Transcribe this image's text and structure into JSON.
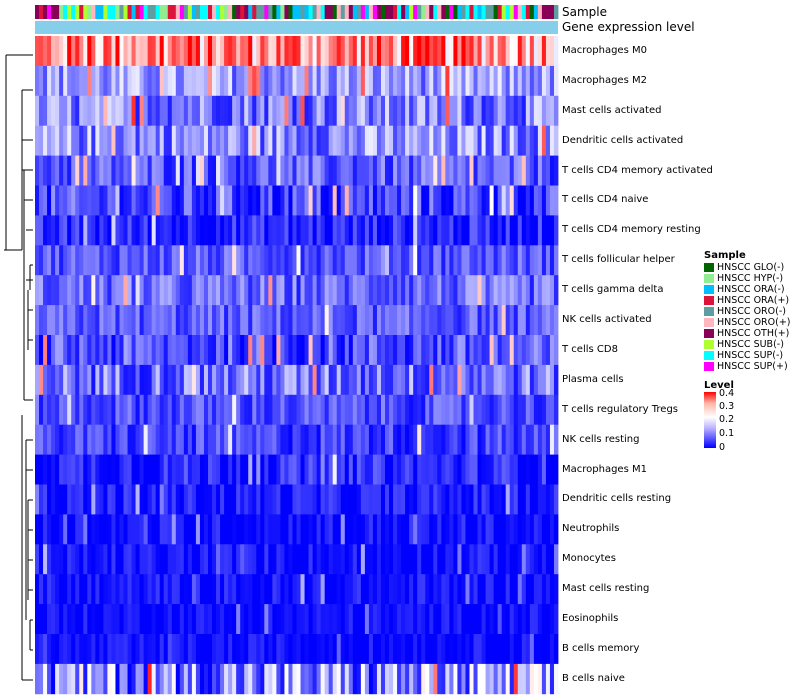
{
  "chart_data": {
    "type": "heatmap",
    "title": "",
    "tracks": [
      "Sample",
      "Gene expression level"
    ],
    "rows": [
      {
        "name": "Macrophages M0",
        "mean": 0.3,
        "spread": 0.12
      },
      {
        "name": "Macrophages M2",
        "mean": 0.12,
        "spread": 0.07
      },
      {
        "name": "Mast cells activated",
        "mean": 0.1,
        "spread": 0.08
      },
      {
        "name": "Dendritic cells activated",
        "mean": 0.11,
        "spread": 0.08
      },
      {
        "name": "T cells CD4 memory activated",
        "mean": 0.07,
        "spread": 0.06
      },
      {
        "name": "T cells CD4 naive",
        "mean": 0.05,
        "spread": 0.07
      },
      {
        "name": "T cells CD4 memory resting",
        "mean": 0.03,
        "spread": 0.05
      },
      {
        "name": "T cells follicular helper",
        "mean": 0.07,
        "spread": 0.05
      },
      {
        "name": "T cells gamma delta",
        "mean": 0.08,
        "spread": 0.06
      },
      {
        "name": "NK cells activated",
        "mean": 0.07,
        "spread": 0.05
      },
      {
        "name": "T cells CD8",
        "mean": 0.06,
        "spread": 0.07
      },
      {
        "name": "Plasma cells",
        "mean": 0.09,
        "spread": 0.08
      },
      {
        "name": "T cells regulatory  Tregs",
        "mean": 0.06,
        "spread": 0.05
      },
      {
        "name": "NK cells resting",
        "mean": 0.05,
        "spread": 0.05
      },
      {
        "name": "Macrophages M1",
        "mean": 0.03,
        "spread": 0.05
      },
      {
        "name": "Dendritic cells resting",
        "mean": 0.02,
        "spread": 0.04
      },
      {
        "name": "Neutrophils",
        "mean": 0.01,
        "spread": 0.04
      },
      {
        "name": "Monocytes",
        "mean": 0.01,
        "spread": 0.04
      },
      {
        "name": "Mast cells resting",
        "mean": 0.01,
        "spread": 0.04
      },
      {
        "name": "Eosinophils",
        "mean": 0.01,
        "spread": 0.03
      },
      {
        "name": "B cells memory",
        "mean": 0.01,
        "spread": 0.03
      },
      {
        "name": "B cells naive",
        "mean": 0.1,
        "spread": 0.12
      }
    ],
    "n_samples": 130,
    "value_range": [
      0,
      0.4
    ],
    "sample_groups": [
      {
        "name": "HNSCC GLO(-)",
        "color": "#006400"
      },
      {
        "name": "HNSCC HYP(-)",
        "color": "#90ee90"
      },
      {
        "name": "HNSCC ORA(-)",
        "color": "#00bfff"
      },
      {
        "name": "HNSCC ORA(+)",
        "color": "#dc143c"
      },
      {
        "name": "HNSCC ORO(-)",
        "color": "#5f9ea0"
      },
      {
        "name": "HNSCC ORO(+)",
        "color": "#ffb6c1"
      },
      {
        "name": "HNSCC OTH(+)",
        "color": "#8b0057"
      },
      {
        "name": "HNSCC SUB(-)",
        "color": "#adff2f"
      },
      {
        "name": "HNSCC SUP(-)",
        "color": "#00ffff"
      },
      {
        "name": "HNSCC SUP(+)",
        "color": "#ff00ff"
      }
    ],
    "expression_track_color": "#87ceeb",
    "legend": {
      "sample_title": "Sample",
      "level_title": "Level",
      "level_ticks": [
        "0.4",
        "0.3",
        "0.2",
        "0.1",
        "0"
      ]
    }
  }
}
